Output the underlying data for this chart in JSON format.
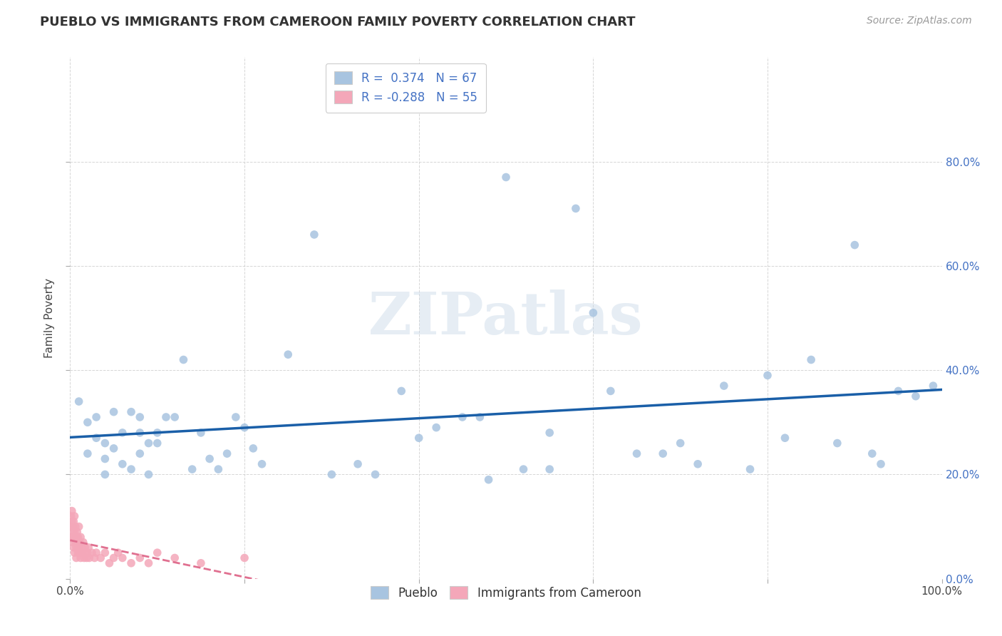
{
  "title": "PUEBLO VS IMMIGRANTS FROM CAMEROON FAMILY POVERTY CORRELATION CHART",
  "source": "Source: ZipAtlas.com",
  "ylabel": "Family Poverty",
  "xlim": [
    0.0,
    1.0
  ],
  "ylim": [
    0.0,
    1.0
  ],
  "xticks": [
    0.0,
    0.2,
    0.4,
    0.6,
    0.8,
    1.0
  ],
  "yticks": [
    0.0,
    0.2,
    0.4,
    0.6,
    0.8
  ],
  "xticklabels": [
    "0.0%",
    "",
    "",
    "",
    "",
    "100.0%"
  ],
  "yticklabels_right": [
    "0.0%",
    "20.0%",
    "40.0%",
    "60.0%",
    "80.0%"
  ],
  "pueblo_color": "#a8c4e0",
  "cameroon_color": "#f4a7b9",
  "trendline_pueblo_color": "#1a5fa8",
  "trendline_cameroon_color": "#e07090",
  "R_pueblo": 0.374,
  "N_pueblo": 67,
  "R_cameroon": -0.288,
  "N_cameroon": 55,
  "background_color": "#ffffff",
  "grid_color": "#cccccc",
  "watermark": "ZIPatlas",
  "legend_pueblo": "Pueblo",
  "legend_cameroon": "Immigrants from Cameroon",
  "pueblo_x": [
    0.01,
    0.02,
    0.02,
    0.03,
    0.03,
    0.04,
    0.04,
    0.04,
    0.05,
    0.05,
    0.06,
    0.06,
    0.07,
    0.07,
    0.08,
    0.08,
    0.08,
    0.09,
    0.09,
    0.1,
    0.1,
    0.11,
    0.12,
    0.13,
    0.14,
    0.15,
    0.16,
    0.17,
    0.18,
    0.19,
    0.2,
    0.21,
    0.22,
    0.25,
    0.28,
    0.3,
    0.33,
    0.35,
    0.38,
    0.4,
    0.42,
    0.45,
    0.47,
    0.48,
    0.5,
    0.52,
    0.55,
    0.55,
    0.58,
    0.6,
    0.62,
    0.65,
    0.68,
    0.7,
    0.72,
    0.75,
    0.78,
    0.8,
    0.82,
    0.85,
    0.88,
    0.9,
    0.92,
    0.93,
    0.95,
    0.97,
    0.99
  ],
  "pueblo_y": [
    0.34,
    0.3,
    0.24,
    0.31,
    0.27,
    0.26,
    0.2,
    0.23,
    0.25,
    0.32,
    0.28,
    0.22,
    0.32,
    0.21,
    0.28,
    0.24,
    0.31,
    0.26,
    0.2,
    0.28,
    0.26,
    0.31,
    0.31,
    0.42,
    0.21,
    0.28,
    0.23,
    0.21,
    0.24,
    0.31,
    0.29,
    0.25,
    0.22,
    0.43,
    0.66,
    0.2,
    0.22,
    0.2,
    0.36,
    0.27,
    0.29,
    0.31,
    0.31,
    0.19,
    0.77,
    0.21,
    0.28,
    0.21,
    0.71,
    0.51,
    0.36,
    0.24,
    0.24,
    0.26,
    0.22,
    0.37,
    0.21,
    0.39,
    0.27,
    0.42,
    0.26,
    0.64,
    0.24,
    0.22,
    0.36,
    0.35,
    0.37
  ],
  "cameroon_x": [
    0.001,
    0.001,
    0.002,
    0.002,
    0.002,
    0.003,
    0.003,
    0.003,
    0.004,
    0.004,
    0.004,
    0.005,
    0.005,
    0.005,
    0.006,
    0.006,
    0.007,
    0.007,
    0.007,
    0.008,
    0.008,
    0.009,
    0.009,
    0.01,
    0.01,
    0.011,
    0.011,
    0.012,
    0.012,
    0.013,
    0.014,
    0.015,
    0.016,
    0.017,
    0.018,
    0.019,
    0.02,
    0.021,
    0.022,
    0.025,
    0.028,
    0.03,
    0.035,
    0.04,
    0.045,
    0.05,
    0.055,
    0.06,
    0.07,
    0.08,
    0.09,
    0.1,
    0.12,
    0.15,
    0.2
  ],
  "cameroon_y": [
    0.1,
    0.12,
    0.08,
    0.11,
    0.13,
    0.09,
    0.07,
    0.1,
    0.08,
    0.06,
    0.11,
    0.05,
    0.09,
    0.12,
    0.07,
    0.1,
    0.06,
    0.08,
    0.04,
    0.07,
    0.09,
    0.05,
    0.08,
    0.06,
    0.1,
    0.05,
    0.07,
    0.04,
    0.08,
    0.06,
    0.05,
    0.07,
    0.04,
    0.06,
    0.05,
    0.04,
    0.05,
    0.06,
    0.04,
    0.05,
    0.04,
    0.05,
    0.04,
    0.05,
    0.03,
    0.04,
    0.05,
    0.04,
    0.03,
    0.04,
    0.03,
    0.05,
    0.04,
    0.03,
    0.04
  ]
}
